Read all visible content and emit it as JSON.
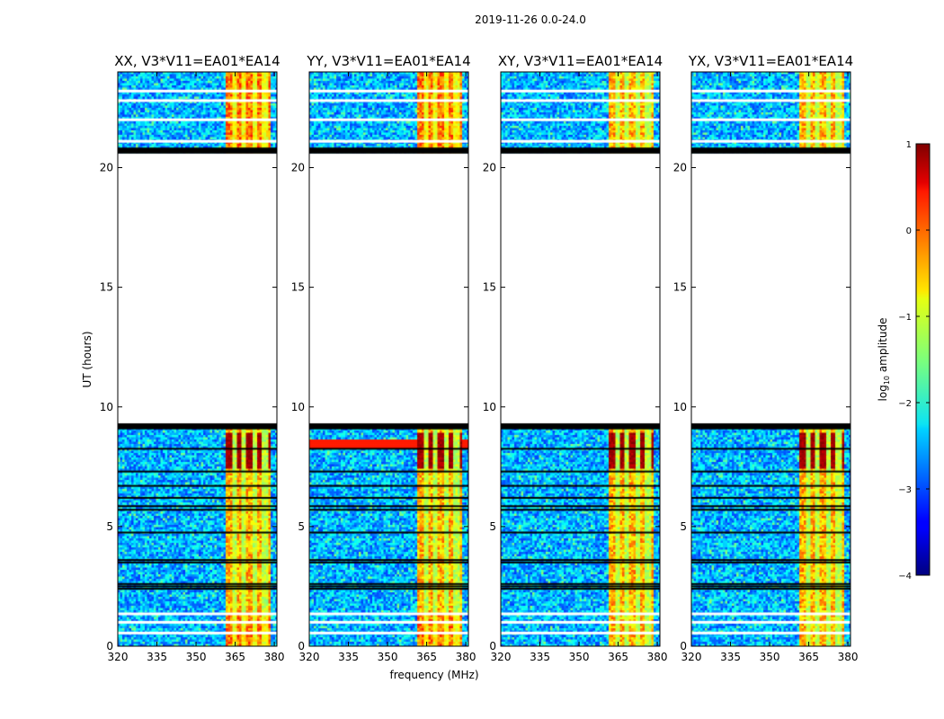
{
  "figure": {
    "suptitle": "2019-11-26 0.0-24.0",
    "xlabel": "frequency (MHz)",
    "ylabel": "UT (hours)"
  },
  "chart_data": {
    "type": "heatmap",
    "x_range": [
      320,
      381
    ],
    "y_range": [
      0,
      24
    ],
    "x_ticks": [
      "320",
      "335",
      "350",
      "365",
      "380"
    ],
    "x_tick_values": [
      320,
      335,
      350,
      365,
      380
    ],
    "y_ticks": [
      "0",
      "5",
      "10",
      "15",
      "20"
    ],
    "y_tick_values": [
      0,
      5,
      10,
      15,
      20
    ],
    "panels": [
      {
        "title": "XX, V3*V11=EA01*EA14",
        "id": "xx"
      },
      {
        "title": "YY, V3*V11=EA01*EA14",
        "id": "yy"
      },
      {
        "title": "XY, V3*V11=EA01*EA14",
        "id": "xy"
      },
      {
        "title": "YX, V3*V11=EA01*EA14",
        "id": "yx"
      }
    ],
    "data_segments_hours": [
      [
        0,
        9.2
      ],
      [
        20.7,
        24
      ]
    ],
    "flag_gap_hours": [
      9.2,
      20.7
    ],
    "rfi_band_mhz": [
      360.5,
      378.5
    ],
    "rfi_subband_edges_mhz": [
      364,
      368,
      372,
      376
    ],
    "strong_rfi_hours": [
      7.5,
      9.0
    ],
    "blank_row_hours": [
      0.55,
      1.0,
      1.35,
      21.1,
      22.0,
      22.8,
      23.2
    ],
    "black_row_hours": [
      2.4,
      2.5,
      2.6,
      3.5,
      3.6,
      4.75,
      5.7,
      5.85,
      6.2,
      6.7,
      7.3,
      8.25,
      9.1,
      9.2,
      20.7,
      20.8
    ],
    "colorbar": {
      "label": "log10 amplitude",
      "label_main": "log",
      "label_sub": "10",
      "label_rest": " amplitude",
      "range": [
        -4,
        1
      ],
      "ticks": [
        "1",
        "0",
        "−1",
        "−2",
        "−3",
        "−4"
      ],
      "tick_values": [
        1,
        0,
        -1,
        -2,
        -3,
        -4
      ],
      "colormap": "jet"
    }
  }
}
